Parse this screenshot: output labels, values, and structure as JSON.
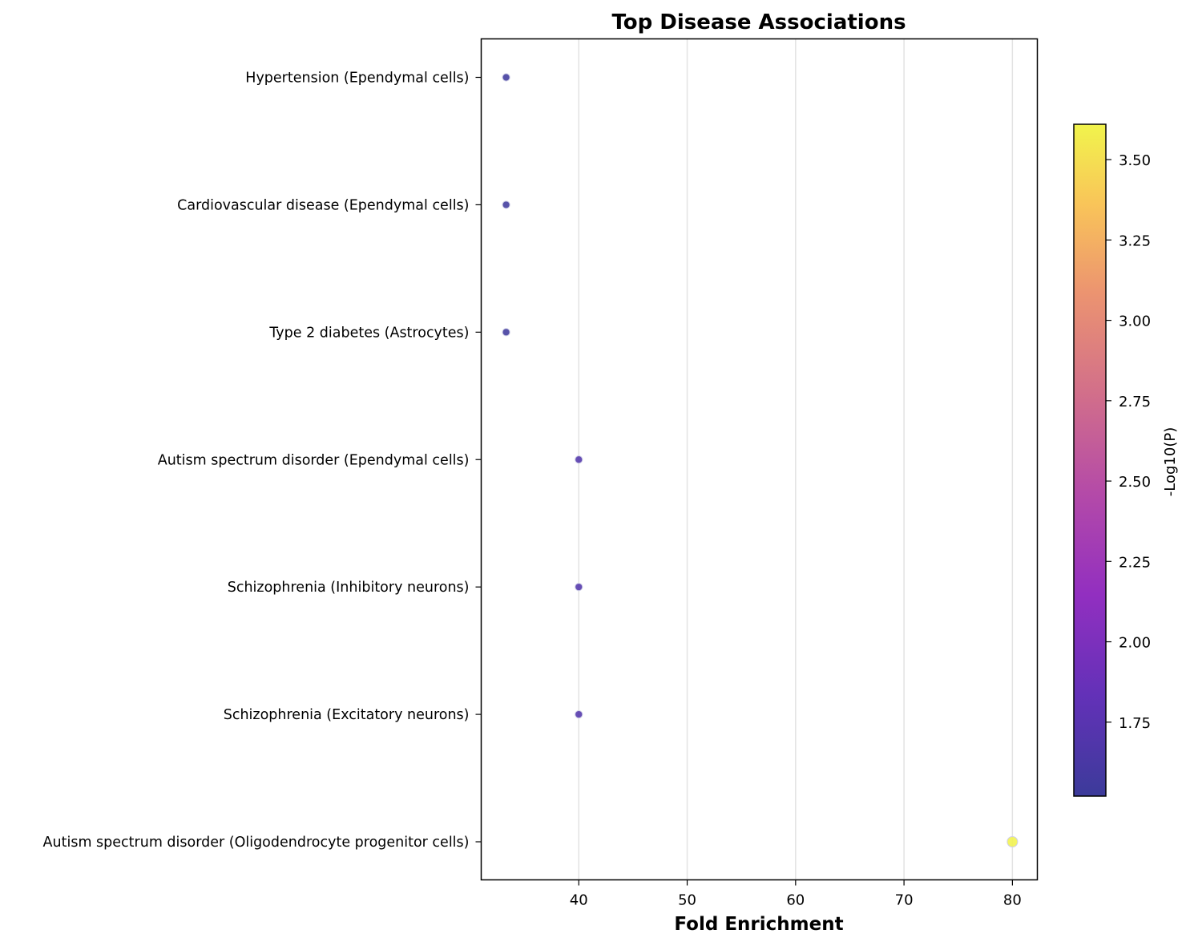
{
  "chart_data": {
    "type": "scatter",
    "title": "Top Disease Associations",
    "xlabel": "Fold Enrichment",
    "ylabel": "",
    "xlim": [
      31,
      82.3
    ],
    "xticks": [
      40,
      50,
      60,
      70,
      80
    ],
    "grid": "vertical",
    "categories": [
      "Hypertension (Ependymal cells)",
      "Cardiovascular disease (Ependymal cells)",
      "Type 2 diabetes (Astrocytes)",
      "Autism spectrum disorder (Ependymal cells)",
      "Schizophrenia (Inhibitory neurons)",
      "Schizophrenia (Excitatory neurons)",
      "Autism spectrum disorder (Oligodendrocyte progenitor cells)"
    ],
    "points": [
      {
        "category": "Hypertension (Ependymal cells)",
        "x": 33.3,
        "neg_log10_p": 1.55
      },
      {
        "category": "Cardiovascular disease (Ependymal cells)",
        "x": 33.3,
        "neg_log10_p": 1.55
      },
      {
        "category": "Type 2 diabetes (Astrocytes)",
        "x": 33.3,
        "neg_log10_p": 1.55
      },
      {
        "category": "Autism spectrum disorder (Ependymal cells)",
        "x": 40.0,
        "neg_log10_p": 1.7
      },
      {
        "category": "Schizophrenia (Inhibitory neurons)",
        "x": 40.0,
        "neg_log10_p": 1.7
      },
      {
        "category": "Schizophrenia (Excitatory neurons)",
        "x": 40.0,
        "neg_log10_p": 1.7
      },
      {
        "category": "Autism spectrum disorder (Oligodendrocyte progenitor cells)",
        "x": 80.0,
        "neg_log10_p": 3.6
      }
    ],
    "colorbar": {
      "label": "-Log10(P)",
      "colormap": "plasma",
      "range": [
        1.52,
        3.61
      ],
      "ticks": [
        "1.75",
        "2.00",
        "2.25",
        "2.50",
        "2.75",
        "3.00",
        "3.25",
        "3.50"
      ]
    }
  }
}
